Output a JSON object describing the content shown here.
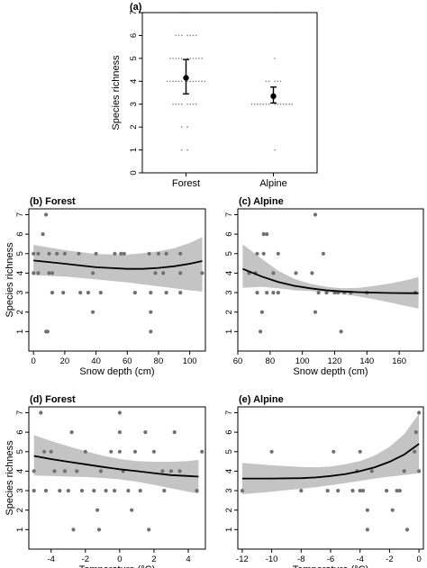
{
  "chart_data": [
    {
      "id": "a",
      "type": "scatter",
      "title": "(a)",
      "ylabel": "Species richness",
      "xlabel": "",
      "categories": [
        "Forest",
        "Alpine"
      ],
      "ylim": [
        0,
        7
      ],
      "yticks": [
        0,
        1,
        2,
        3,
        4,
        5,
        6,
        7
      ],
      "summary": [
        {
          "category": "Forest",
          "mean": 4.15,
          "lower": 3.45,
          "upper": 4.95
        },
        {
          "category": "Alpine",
          "mean": 3.35,
          "lower": 3.05,
          "upper": 3.75
        }
      ],
      "jitter_points": [
        {
          "category": "Forest",
          "values": [
            7,
            7,
            6,
            6,
            6,
            6,
            6,
            6,
            6,
            5,
            5,
            5,
            5,
            5,
            5,
            5,
            5,
            5,
            5,
            5,
            4,
            4,
            4,
            4,
            4,
            4,
            4,
            4,
            4,
            4,
            4,
            4,
            4,
            3,
            3,
            3,
            3,
            3,
            3,
            3,
            3,
            2,
            2,
            1,
            1
          ]
        },
        {
          "category": "Alpine",
          "values": [
            7,
            5,
            4,
            4,
            4,
            4,
            4,
            3,
            3,
            3,
            3,
            3,
            3,
            3,
            3,
            3,
            3,
            3,
            3,
            3,
            3,
            1
          ]
        }
      ]
    },
    {
      "id": "b",
      "type": "scatter",
      "title": "(b) Forest",
      "xlabel": "Snow depth (cm)",
      "ylabel": "Species richness",
      "xlim": [
        -3,
        110
      ],
      "ylim": [
        0,
        7.3
      ],
      "xticks": [
        0,
        20,
        40,
        60,
        80,
        100
      ],
      "yticks": [
        1,
        2,
        3,
        4,
        5,
        6,
        7
      ],
      "points": [
        [
          0,
          5
        ],
        [
          0,
          4
        ],
        [
          3,
          5
        ],
        [
          3,
          4
        ],
        [
          6,
          6
        ],
        [
          8,
          7
        ],
        [
          8,
          1
        ],
        [
          9,
          1
        ],
        [
          10,
          5
        ],
        [
          10,
          4
        ],
        [
          12,
          4
        ],
        [
          12,
          3
        ],
        [
          15,
          5
        ],
        [
          19,
          3
        ],
        [
          20,
          5
        ],
        [
          29,
          5
        ],
        [
          30,
          3
        ],
        [
          35,
          3
        ],
        [
          38,
          2
        ],
        [
          38,
          4
        ],
        [
          40,
          5
        ],
        [
          43,
          3
        ],
        [
          52,
          5
        ],
        [
          56,
          5
        ],
        [
          58,
          5
        ],
        [
          65,
          3
        ],
        [
          74,
          5
        ],
        [
          75,
          1
        ],
        [
          75,
          2
        ],
        [
          75,
          3
        ],
        [
          78,
          4
        ],
        [
          80,
          5
        ],
        [
          83,
          4
        ],
        [
          85,
          3
        ],
        [
          85,
          5
        ],
        [
          94,
          3
        ],
        [
          94,
          4
        ],
        [
          94,
          5
        ],
        [
          108,
          4
        ]
      ],
      "fit": {
        "x": [
          0,
          20,
          40,
          60,
          70,
          80,
          90,
          100,
          108
        ],
        "y": [
          4.65,
          4.48,
          4.3,
          4.22,
          4.22,
          4.27,
          4.35,
          4.48,
          4.62
        ]
      },
      "band": {
        "x": [
          0,
          20,
          40,
          60,
          70,
          80,
          90,
          100,
          108
        ],
        "lower": [
          3.9,
          3.82,
          3.68,
          3.52,
          3.42,
          3.32,
          3.22,
          3.12,
          3.05
        ],
        "upper": [
          5.45,
          5.18,
          4.98,
          4.95,
          5.02,
          5.12,
          5.28,
          5.55,
          5.85
        ]
      }
    },
    {
      "id": "c",
      "type": "scatter",
      "title": "(c) Alpine",
      "xlabel": "Snow depth (cm)",
      "ylabel": "",
      "xlim": [
        60,
        175
      ],
      "ylim": [
        0,
        7.3
      ],
      "xticks": [
        60,
        80,
        100,
        120,
        140,
        160
      ],
      "yticks": [
        1,
        2,
        3,
        4,
        5,
        6,
        7
      ],
      "points": [
        [
          67,
          4
        ],
        [
          71,
          4
        ],
        [
          72,
          5
        ],
        [
          72,
          3
        ],
        [
          74,
          1
        ],
        [
          75,
          2
        ],
        [
          76,
          6
        ],
        [
          76,
          5
        ],
        [
          78,
          6
        ],
        [
          78,
          3
        ],
        [
          82,
          4
        ],
        [
          82,
          3
        ],
        [
          85,
          3
        ],
        [
          85,
          5
        ],
        [
          96,
          4
        ],
        [
          106,
          4
        ],
        [
          108,
          7
        ],
        [
          108,
          2
        ],
        [
          110,
          3
        ],
        [
          113,
          5
        ],
        [
          115,
          3
        ],
        [
          120,
          3
        ],
        [
          122,
          3
        ],
        [
          124,
          1
        ],
        [
          126,
          3
        ],
        [
          130,
          3
        ],
        [
          140,
          3
        ],
        [
          170,
          3
        ]
      ],
      "fit": {
        "x": [
          63,
          75,
          85,
          95,
          105,
          115,
          125,
          135,
          145,
          155,
          165,
          172
        ],
        "y": [
          4.22,
          3.82,
          3.55,
          3.35,
          3.22,
          3.12,
          3.06,
          3.02,
          3.0,
          2.98,
          2.97,
          2.97
        ]
      },
      "band": {
        "x": [
          63,
          75,
          85,
          95,
          105,
          115,
          125,
          135,
          145,
          155,
          165,
          172
        ],
        "lower": [
          3.25,
          3.3,
          3.22,
          3.12,
          3.08,
          3.02,
          2.92,
          2.8,
          2.65,
          2.48,
          2.3,
          2.18
        ],
        "upper": [
          5.48,
          4.72,
          4.12,
          3.7,
          3.45,
          3.3,
          3.22,
          3.25,
          3.35,
          3.48,
          3.65,
          3.8
        ]
      }
    },
    {
      "id": "d",
      "type": "scatter",
      "title": "(d) Forest",
      "xlabel": "Temperature (°C)",
      "ylabel": "Species richness",
      "xlim": [
        -5.3,
        5
      ],
      "ylim": [
        0,
        7.3
      ],
      "xticks": [
        -4,
        -2,
        0,
        2,
        4
      ],
      "yticks": [
        1,
        2,
        3,
        4,
        5,
        6,
        7
      ],
      "points": [
        [
          -5,
          4
        ],
        [
          -5,
          3
        ],
        [
          -4.6,
          7
        ],
        [
          -4.4,
          5
        ],
        [
          -4.3,
          3
        ],
        [
          -4,
          5
        ],
        [
          -3.8,
          4
        ],
        [
          -3.5,
          3
        ],
        [
          -3.2,
          4
        ],
        [
          -3,
          3
        ],
        [
          -2.8,
          6
        ],
        [
          -2.7,
          1
        ],
        [
          -2.5,
          4
        ],
        [
          -2.2,
          3
        ],
        [
          -2,
          5
        ],
        [
          -1.5,
          3
        ],
        [
          -1.3,
          2
        ],
        [
          -1.2,
          1
        ],
        [
          -1.1,
          4
        ],
        [
          -0.8,
          3
        ],
        [
          -0.5,
          5
        ],
        [
          -0.3,
          3
        ],
        [
          0,
          7
        ],
        [
          0,
          6
        ],
        [
          0,
          5
        ],
        [
          0.2,
          4
        ],
        [
          0.5,
          3
        ],
        [
          0.7,
          2
        ],
        [
          0.9,
          5
        ],
        [
          1.2,
          3
        ],
        [
          1.5,
          6
        ],
        [
          1.7,
          1
        ],
        [
          2,
          5
        ],
        [
          2.5,
          4
        ],
        [
          2.6,
          3
        ],
        [
          3,
          4
        ],
        [
          3.2,
          6
        ],
        [
          3.5,
          4
        ],
        [
          4.5,
          3
        ],
        [
          4.8,
          5
        ]
      ],
      "fit": {
        "x": [
          -5,
          -4,
          -3,
          -2,
          -1,
          0,
          1,
          2,
          3,
          4,
          4.6
        ],
        "y": [
          4.78,
          4.62,
          4.48,
          4.35,
          4.22,
          4.1,
          4.0,
          3.9,
          3.8,
          3.75,
          3.72
        ]
      },
      "band": {
        "x": [
          -5,
          -4,
          -3,
          -2,
          -1,
          0,
          1,
          2,
          3,
          4,
          4.6
        ],
        "lower": [
          3.78,
          3.75,
          3.72,
          3.7,
          3.65,
          3.58,
          3.46,
          3.3,
          3.12,
          2.95,
          2.85
        ],
        "upper": [
          5.85,
          5.55,
          5.28,
          5.02,
          4.8,
          4.62,
          4.52,
          4.48,
          4.48,
          4.52,
          4.58
        ]
      }
    },
    {
      "id": "e",
      "type": "scatter",
      "title": "(e) Alpine",
      "xlabel": "Temperature (°C)",
      "ylabel": "",
      "xlim": [
        -12.3,
        0.3
      ],
      "ylim": [
        0,
        7.3
      ],
      "xticks": [
        -12,
        -10,
        -8,
        -6,
        -4,
        -2,
        0
      ],
      "yticks": [
        1,
        2,
        3,
        4,
        5,
        6,
        7
      ],
      "points": [
        [
          -12,
          3
        ],
        [
          -10,
          5
        ],
        [
          -8,
          3
        ],
        [
          -6.2,
          3
        ],
        [
          -5.8,
          5
        ],
        [
          -5.5,
          3
        ],
        [
          -4.5,
          3
        ],
        [
          -4.2,
          4
        ],
        [
          -4,
          5
        ],
        [
          -4,
          3
        ],
        [
          -3.8,
          3
        ],
        [
          -3.5,
          1
        ],
        [
          -3.5,
          2
        ],
        [
          -3.2,
          4
        ],
        [
          -2.2,
          3
        ],
        [
          -1.8,
          2
        ],
        [
          -1.5,
          3
        ],
        [
          -1.3,
          3
        ],
        [
          -1,
          4
        ],
        [
          -0.8,
          1
        ],
        [
          -0.3,
          5
        ],
        [
          -0.2,
          6
        ],
        [
          0,
          7
        ],
        [
          0,
          4
        ]
      ],
      "fit": {
        "x": [
          -12,
          -10,
          -8,
          -7,
          -6,
          -5,
          -4,
          -3,
          -2,
          -1,
          0
        ],
        "y": [
          3.62,
          3.62,
          3.64,
          3.68,
          3.75,
          3.85,
          4.0,
          4.2,
          4.48,
          4.85,
          5.4
        ]
      },
      "band": {
        "x": [
          -12,
          -10,
          -8,
          -7,
          -6,
          -5,
          -4,
          -3,
          -2,
          -1,
          0
        ],
        "lower": [
          2.82,
          2.95,
          3.1,
          3.18,
          3.28,
          3.38,
          3.5,
          3.62,
          3.72,
          3.8,
          3.9
        ],
        "upper": [
          4.42,
          4.3,
          4.22,
          4.2,
          4.24,
          4.35,
          4.52,
          4.8,
          5.25,
          5.9,
          6.95
        ]
      }
    }
  ]
}
